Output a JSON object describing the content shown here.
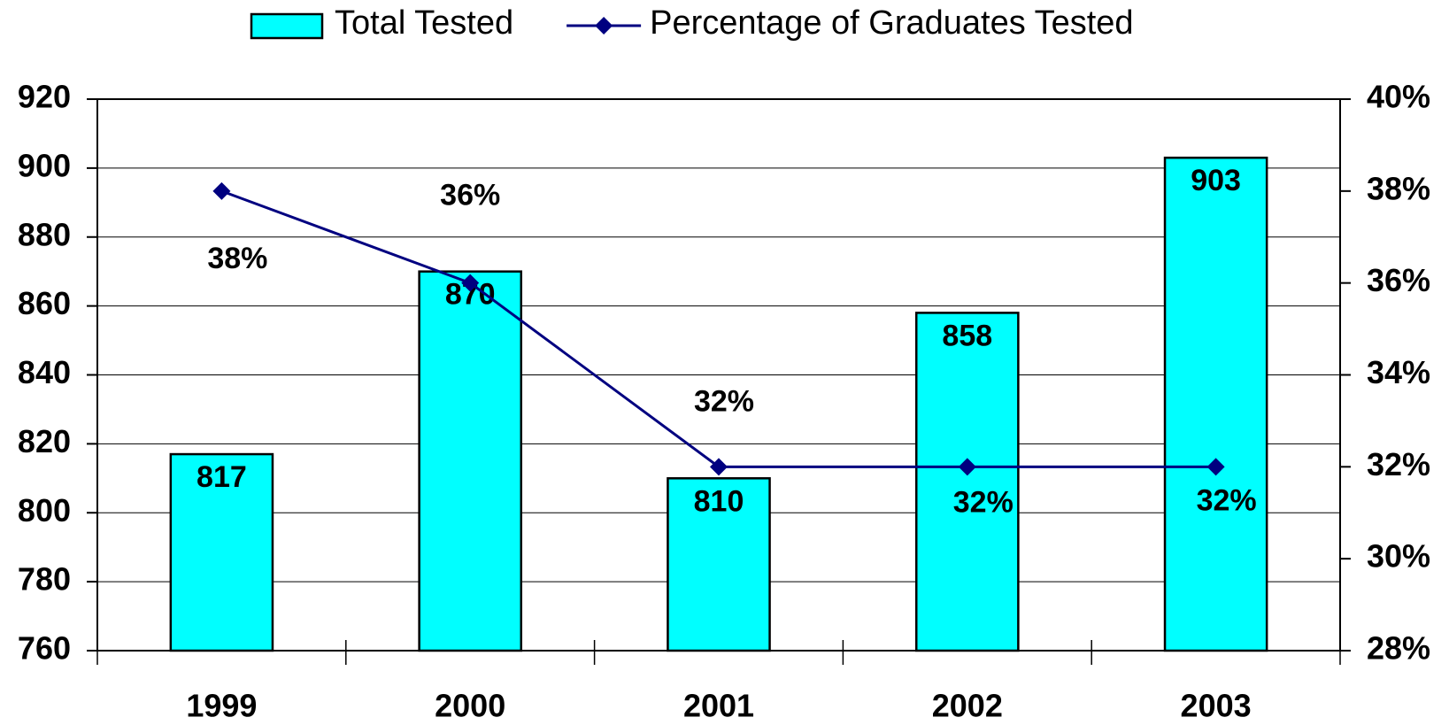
{
  "chart_data": {
    "type": "bar",
    "categories": [
      "1999",
      "2000",
      "2001",
      "2002",
      "2003"
    ],
    "series": [
      {
        "name": "Total Tested",
        "type": "bar",
        "color": "#00ffff",
        "values": [
          817,
          870,
          810,
          858,
          903
        ]
      },
      {
        "name": "Percentage of Graduates Tested",
        "type": "line",
        "axis": "y2",
        "color": "#000080",
        "values": [
          38,
          36,
          32,
          32,
          32
        ],
        "value_labels": [
          "38%",
          "36%",
          "32%",
          "32%",
          "32%"
        ]
      }
    ],
    "ylim": [
      760,
      920
    ],
    "yticks": [
      760,
      780,
      800,
      820,
      840,
      860,
      880,
      900,
      920
    ],
    "y2lim": [
      28,
      40
    ],
    "y2ticks": [
      {
        "value": 28,
        "label": "28%"
      },
      {
        "value": 30,
        "label": "30%"
      },
      {
        "value": 32,
        "label": "32%"
      },
      {
        "value": 34,
        "label": "34%"
      },
      {
        "value": 36,
        "label": "36%"
      },
      {
        "value": 38,
        "label": "38%"
      },
      {
        "value": 40,
        "label": "40%"
      }
    ],
    "grid": true,
    "legend": "top"
  }
}
